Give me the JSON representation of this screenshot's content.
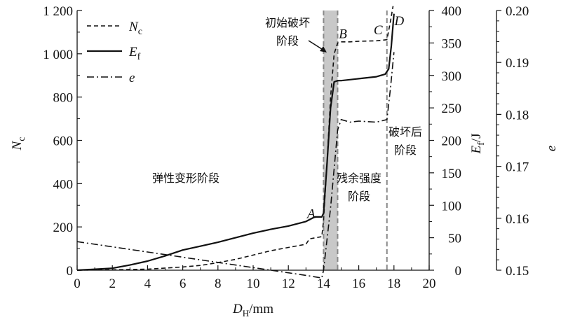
{
  "chart_data": {
    "type": "line",
    "x_axis": {
      "label_main": "D",
      "label_sub": "H",
      "label_unit": "/mm",
      "range": [
        0,
        20
      ],
      "ticks": [
        "0",
        "2",
        "4",
        "6",
        "8",
        "10",
        "12",
        "14",
        "16",
        "18",
        "20"
      ]
    },
    "y_left": {
      "label_main": "N",
      "label_sub": "c",
      "range": [
        0,
        1200
      ],
      "ticks": [
        "0",
        "200",
        "400",
        "600",
        "800",
        "1 000",
        "1 200"
      ]
    },
    "y_right1": {
      "label_main": "E",
      "label_sub": "f",
      "label_unit": "/J",
      "range": [
        0,
        400
      ],
      "ticks": [
        "0",
        "50",
        "100",
        "150",
        "200",
        "250",
        "300",
        "350",
        "400"
      ]
    },
    "y_right2": {
      "label": "e",
      "range": [
        0.15,
        0.2
      ],
      "ticks": [
        "0.15",
        "0.16",
        "0.17",
        "0.18",
        "0.19",
        "0.20"
      ]
    },
    "legend": {
      "placement": "top-left",
      "entries": [
        {
          "main": "N",
          "sub": "c",
          "style": "dashed"
        },
        {
          "main": "E",
          "sub": "f",
          "style": "solid"
        },
        {
          "main": "e",
          "sub": "",
          "style": "dash-dot"
        }
      ]
    },
    "series": [
      {
        "name": "Nc",
        "axis": "left",
        "x": [
          0,
          2,
          4,
          6,
          7,
          8,
          9,
          10,
          11,
          12,
          13,
          13.2,
          13.9,
          14.0,
          14.2,
          14.4,
          14.6,
          14.8,
          15,
          15.5,
          16,
          17,
          17.6,
          17.8,
          17.95
        ],
        "y": [
          0,
          2,
          5,
          15,
          22,
          35,
          50,
          70,
          90,
          105,
          120,
          145,
          155,
          230,
          500,
          800,
          1000,
          1050,
          1055,
          1055,
          1058,
          1060,
          1065,
          1150,
          1220
        ]
      },
      {
        "name": "Ef",
        "axis": "right1",
        "x": [
          0,
          2,
          3,
          4,
          5,
          6,
          7,
          8,
          9,
          10,
          11,
          12,
          13,
          13.5,
          13.9,
          14.0,
          14.2,
          14.4,
          14.6,
          14.8,
          15,
          16,
          17,
          17.5,
          17.7,
          17.85,
          18.0
        ],
        "y": [
          0,
          3,
          8,
          14,
          22,
          31,
          37,
          43,
          50,
          57,
          63,
          68,
          75,
          82,
          82,
          88,
          165,
          250,
          290,
          292,
          292,
          295,
          298,
          302,
          310,
          345,
          395
        ]
      },
      {
        "name": "e",
        "axis": "right2",
        "x": [
          0,
          2,
          4,
          6,
          8,
          10,
          12,
          13,
          13.9,
          14.0,
          14.4,
          14.8,
          15,
          15.5,
          16,
          17,
          17.6,
          17.8,
          18.0
        ],
        "y": [
          0.1555,
          0.1545,
          0.1535,
          0.1525,
          0.1515,
          0.1505,
          0.1495,
          0.149,
          0.1485,
          0.15,
          0.162,
          0.177,
          0.179,
          0.1785,
          0.1787,
          0.1785,
          0.179,
          0.185,
          0.192
        ]
      }
    ],
    "bands": [
      {
        "x_start": 14.0,
        "x_end": 14.8,
        "fill": "#c8c8c8"
      }
    ],
    "vlines": [
      14.0,
      14.8,
      17.6
    ],
    "points": [
      {
        "label": "A",
        "x": 13.3,
        "y_right1": 88
      },
      {
        "label": "B",
        "x": 15.1,
        "y_right1": 365
      },
      {
        "label": "C",
        "x": 17.1,
        "y_right1": 371
      },
      {
        "label": "D",
        "x": 18.3,
        "y_right1": 385
      }
    ],
    "annotations": {
      "initial_damage": [
        "初始破坏",
        "阶段"
      ],
      "elastic": "弹性变形阶段",
      "residual": [
        "残余强度",
        "阶段"
      ],
      "post_failure": [
        "破坏后",
        "阶段"
      ]
    }
  }
}
